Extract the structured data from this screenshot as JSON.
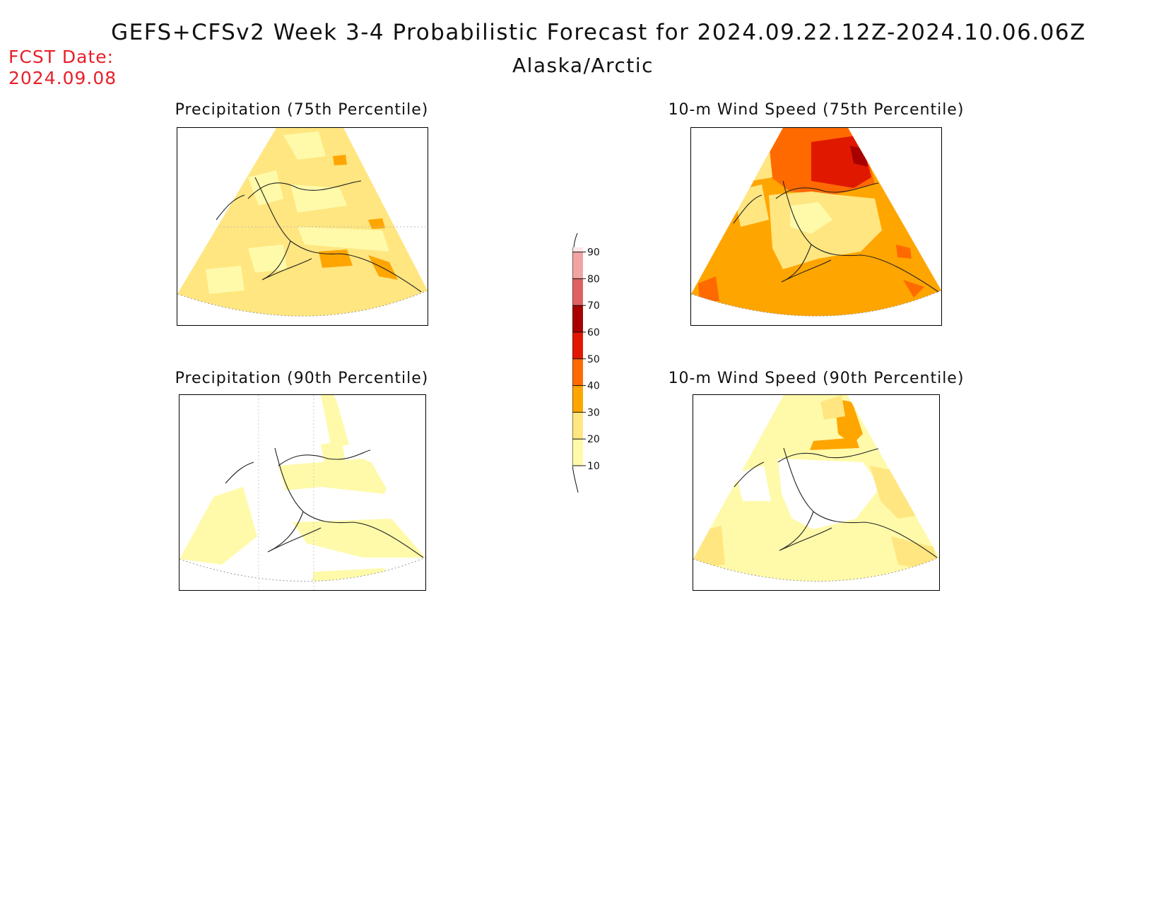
{
  "header": {
    "title": "GEFS+CFSv2 Week 3-4 Probabilistic Forecast for 2024.09.22.12Z-2024.10.06.06Z",
    "region": "Alaska/Arctic",
    "fcst_label": "FCST Date:",
    "fcst_date": "2024.09.08"
  },
  "panels": [
    {
      "id": "precip-75",
      "title": "Precipitation (75th Percentile)",
      "dominant_category": "20-30"
    },
    {
      "id": "wind-75",
      "title": "10-m Wind Speed (75th Percentile)",
      "dominant_category": "30-40"
    },
    {
      "id": "precip-90",
      "title": "Precipitation (90th Percentile)",
      "dominant_category": "10-20"
    },
    {
      "id": "wind-90",
      "title": "10-m Wind Speed (90th Percentile)",
      "dominant_category": "10-20"
    }
  ],
  "legend": {
    "ticks": [
      "10",
      "20",
      "30",
      "40",
      "50",
      "60",
      "70",
      "80",
      "90"
    ],
    "colors": [
      "#fffaaa",
      "#ffe680",
      "#ffa500",
      "#ff6a00",
      "#e01800",
      "#a80000",
      "#de6262",
      "#f0a4a4",
      "#ffe6e6"
    ]
  }
}
